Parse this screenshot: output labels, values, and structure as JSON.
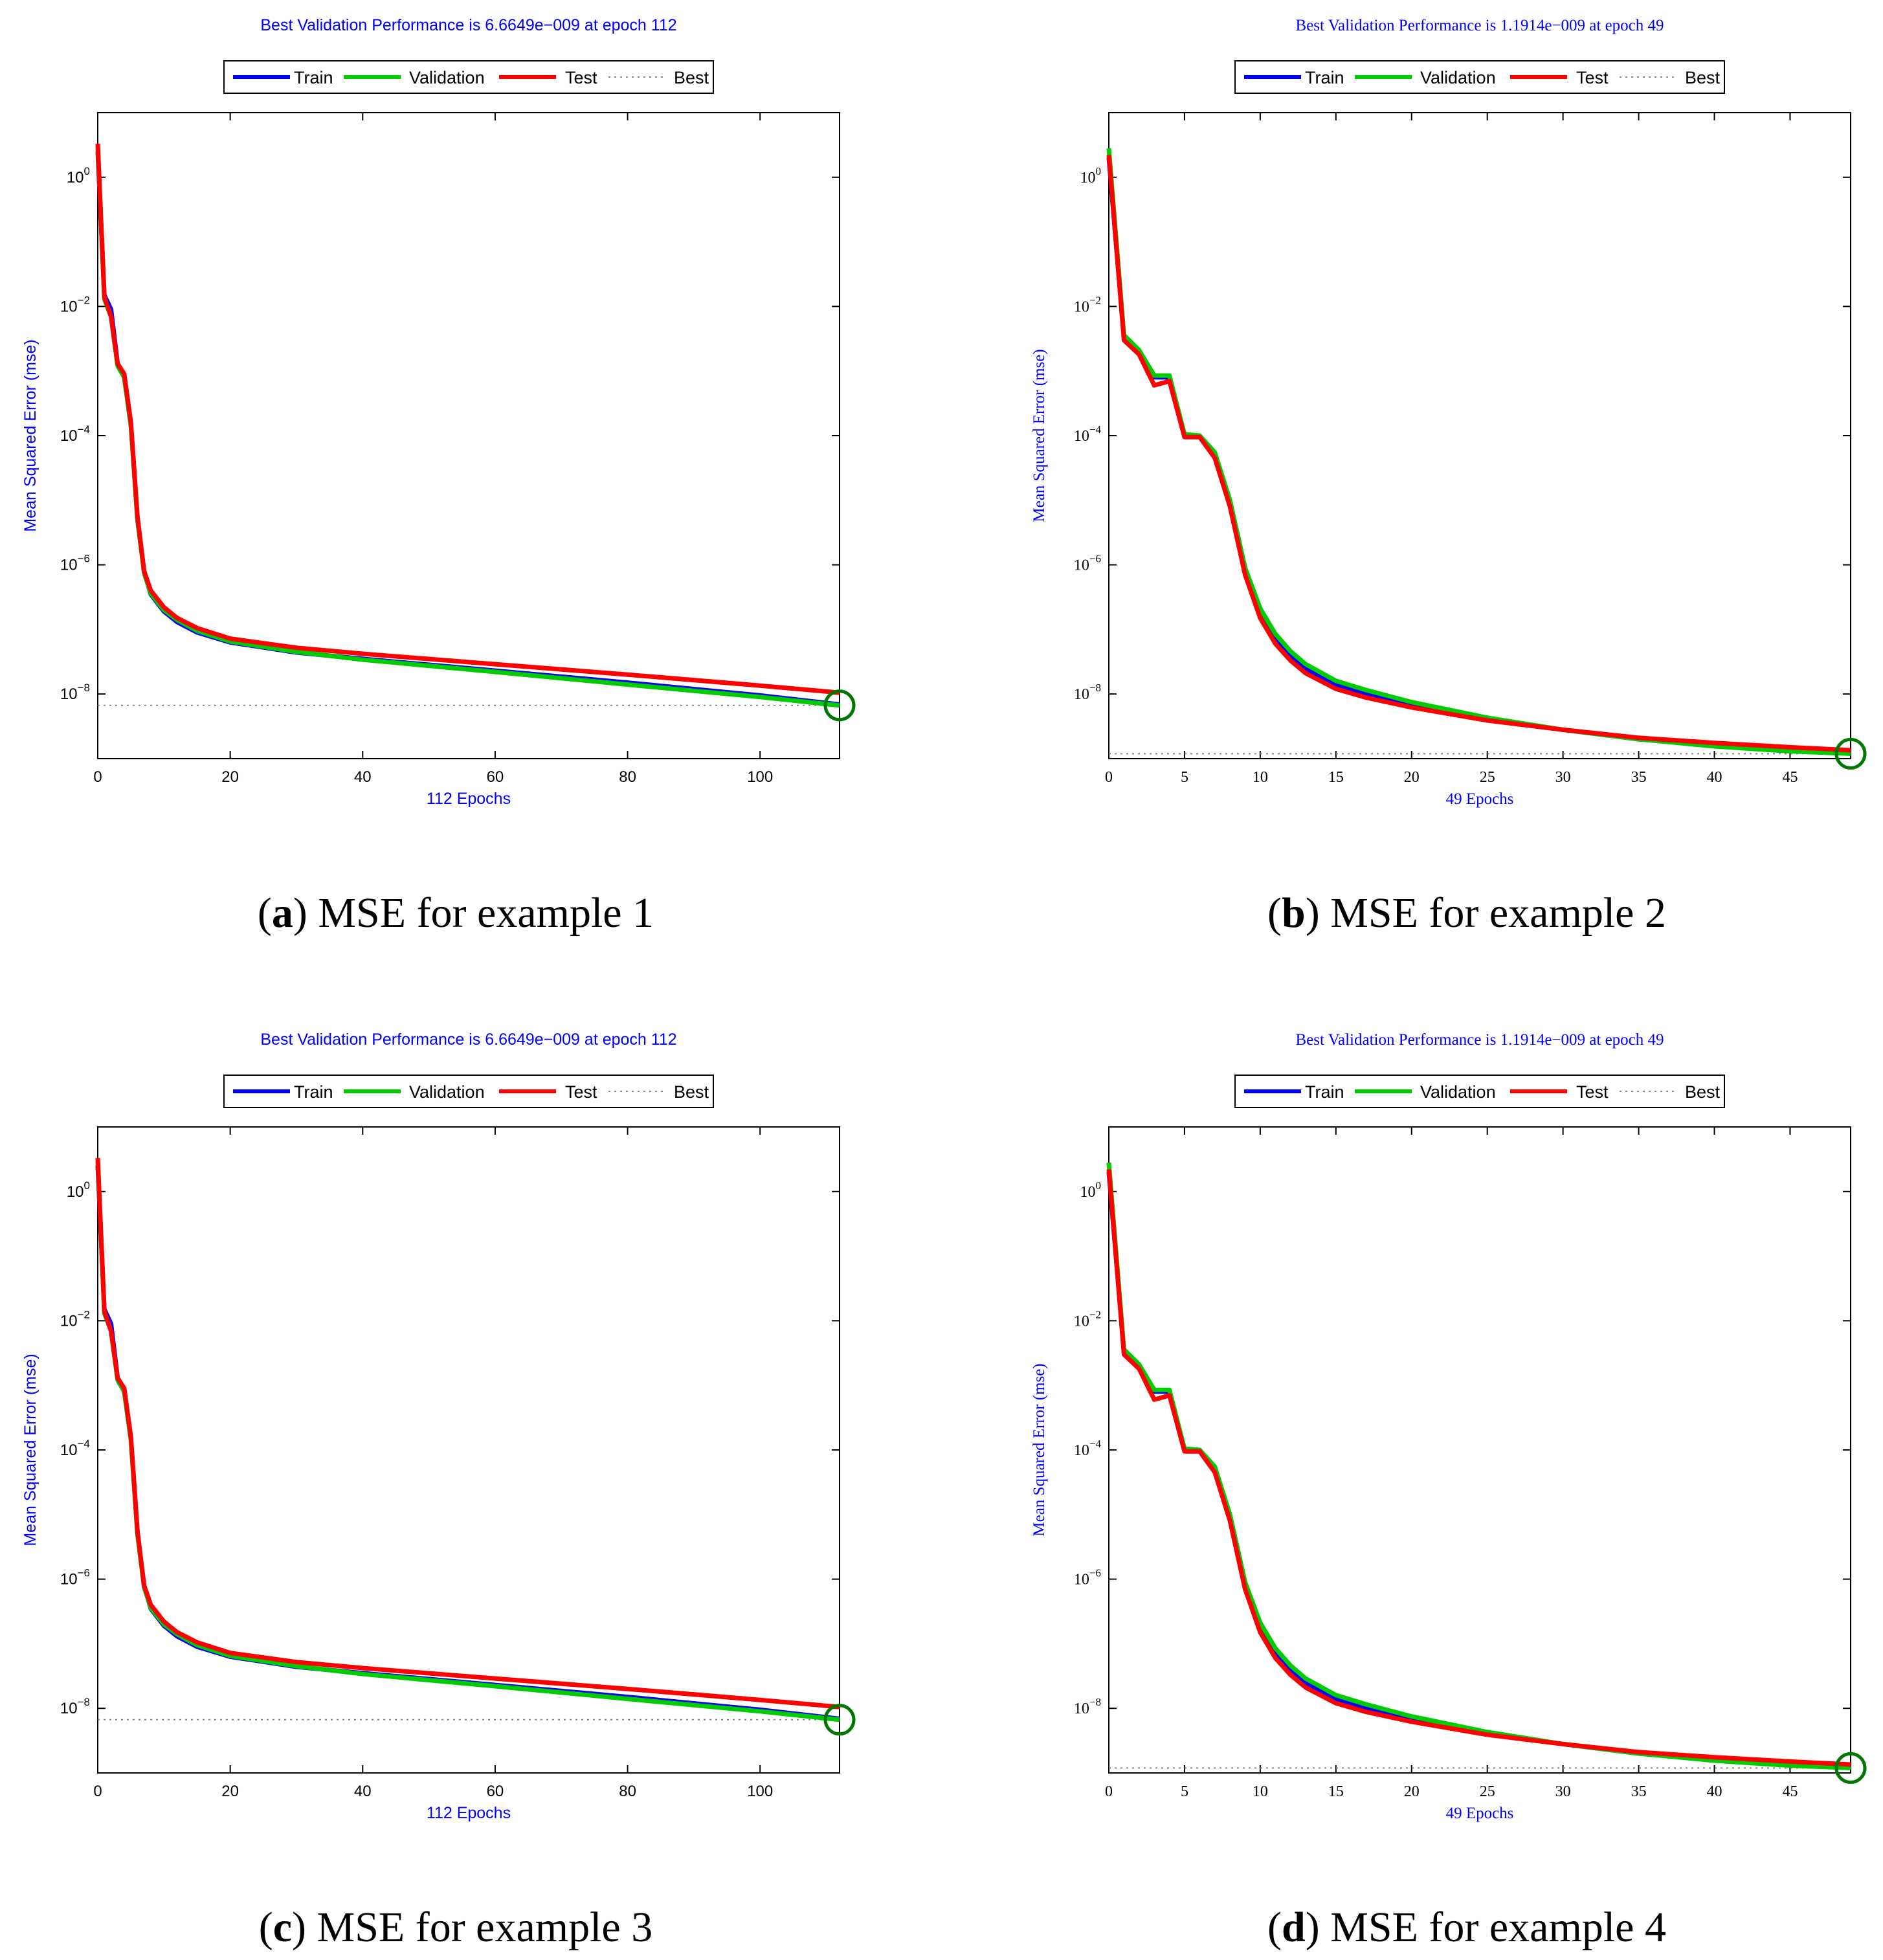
{
  "colors": {
    "train": "#0000ff",
    "validation": "#00cc00",
    "test": "#ff0000",
    "best": "#888888",
    "marker": "#007700",
    "title": "#0000ff"
  },
  "chart_data": [
    {
      "type": "line",
      "caption_letter": "a",
      "caption_text": " MSE for example 1",
      "title": "Best Validation Performance is 6.6649e−009 at epoch 112",
      "xlabel": "112 Epochs",
      "ylabel": "Mean Squared Error  (mse)",
      "xlim": [
        0,
        112
      ],
      "ylim": [
        1e-09,
        10
      ],
      "xticks": [
        "0",
        "20",
        "40",
        "60",
        "80",
        "100"
      ],
      "xtick_values": [
        0,
        20,
        40,
        60,
        80,
        100
      ],
      "yticks": [
        {
          "value": 1,
          "base": "10",
          "exp": "0"
        },
        {
          "value": 0.01,
          "base": "10",
          "exp": "−2"
        },
        {
          "value": 0.0001,
          "base": "10",
          "exp": "−4"
        },
        {
          "value": 1e-06,
          "base": "10",
          "exp": "−6"
        },
        {
          "value": 1e-08,
          "base": "10",
          "exp": "−8"
        }
      ],
      "legend": [
        "Train",
        "Validation",
        "Test",
        "Best"
      ],
      "best": {
        "epoch": 112,
        "value": 6.6649e-09
      },
      "series": [
        {
          "name": "Train",
          "x": [
            0,
            1,
            2,
            3,
            4,
            5,
            6,
            7,
            8,
            10,
            12,
            15,
            20,
            30,
            40,
            60,
            80,
            100,
            112
          ],
          "values": [
            2.5,
            0.015,
            0.009,
            0.0013,
            0.0008,
            0.00015,
            5e-06,
            8e-07,
            3.5e-07,
            1.9e-07,
            1.3e-07,
            9e-08,
            6.3e-08,
            4.4e-08,
            3.5e-08,
            2.3e-08,
            1.5e-08,
            9.5e-09,
            6.9e-09
          ]
        },
        {
          "name": "Validation",
          "x": [
            0,
            1,
            2,
            3,
            4,
            5,
            6,
            7,
            8,
            10,
            12,
            15,
            20,
            30,
            40,
            60,
            80,
            100,
            112
          ],
          "values": [
            3.0,
            0.013,
            0.007,
            0.0012,
            0.0008,
            0.00014,
            5e-06,
            7.5e-07,
            3.6e-07,
            2e-07,
            1.4e-07,
            9.5e-08,
            6.5e-08,
            4.5e-08,
            3.4e-08,
            2.2e-08,
            1.4e-08,
            9e-09,
            6.6649e-09
          ]
        },
        {
          "name": "Test",
          "x": [
            0,
            1,
            2,
            3,
            4,
            5,
            6,
            7,
            8,
            10,
            12,
            15,
            20,
            30,
            40,
            60,
            80,
            100,
            112
          ],
          "values": [
            3.3,
            0.014,
            0.007,
            0.0013,
            0.0009,
            0.00016,
            5.5e-06,
            8e-07,
            4e-07,
            2.2e-07,
            1.5e-07,
            1.05e-07,
            7.2e-08,
            5.2e-08,
            4.2e-08,
            2.9e-08,
            2e-08,
            1.35e-08,
            1.05e-08
          ]
        }
      ]
    },
    {
      "type": "line",
      "caption_letter": "b",
      "caption_text": " MSE for example 2",
      "title": "Best Validation Performance is 1.1914e−009 at epoch 49",
      "xlabel": "49 Epochs",
      "ylabel": "Mean Squared Error  (mse)",
      "xlim": [
        0,
        49
      ],
      "ylim": [
        1e-09,
        10
      ],
      "xticks": [
        "0",
        "5",
        "10",
        "15",
        "20",
        "25",
        "30",
        "35",
        "40",
        "45"
      ],
      "xtick_values": [
        0,
        5,
        10,
        15,
        20,
        25,
        30,
        35,
        40,
        45
      ],
      "yticks": [
        {
          "value": 1,
          "base": "10",
          "exp": "0"
        },
        {
          "value": 0.01,
          "base": "10",
          "exp": "−2"
        },
        {
          "value": 0.0001,
          "base": "10",
          "exp": "−4"
        },
        {
          "value": 1e-06,
          "base": "10",
          "exp": "−6"
        },
        {
          "value": 1e-08,
          "base": "10",
          "exp": "−8"
        }
      ],
      "legend": [
        "Train",
        "Validation",
        "Test",
        "Best"
      ],
      "best": {
        "epoch": 49,
        "value": 1.1914e-09
      },
      "series": [
        {
          "name": "Train",
          "x": [
            0,
            1,
            2,
            3,
            4,
            5,
            6,
            7,
            8,
            9,
            10,
            11,
            12,
            13,
            15,
            17,
            20,
            25,
            30,
            35,
            40,
            45,
            49
          ],
          "values": [
            2.0,
            0.0033,
            0.002,
            0.0008,
            0.0008,
            0.0001,
            0.0001,
            5e-05,
            9e-06,
            8e-07,
            1.8e-07,
            7.5e-08,
            4e-08,
            2.5e-08,
            1.4e-08,
            1e-08,
            6.8e-09,
            4.1e-09,
            2.8e-09,
            2e-09,
            1.6e-09,
            1.35e-09,
            1.2e-09
          ]
        },
        {
          "name": "Validation",
          "x": [
            0,
            1,
            2,
            3,
            4,
            5,
            6,
            7,
            8,
            9,
            10,
            11,
            12,
            13,
            15,
            17,
            20,
            25,
            30,
            35,
            40,
            45,
            49
          ],
          "values": [
            2.8,
            0.0036,
            0.0021,
            0.00085,
            0.00085,
            0.000105,
            0.0001,
            5.5e-05,
            1e-05,
            9e-07,
            2.1e-07,
            8.5e-08,
            4.6e-08,
            2.9e-08,
            1.6e-08,
            1.15e-08,
            7.5e-09,
            4.3e-09,
            2.8e-09,
            2e-09,
            1.55e-09,
            1.3e-09,
            1.1914e-09
          ]
        },
        {
          "name": "Test",
          "x": [
            0,
            1,
            2,
            3,
            4,
            5,
            6,
            7,
            8,
            9,
            10,
            11,
            12,
            13,
            15,
            17,
            20,
            25,
            30,
            35,
            40,
            45,
            49
          ],
          "values": [
            2.2,
            0.003,
            0.0018,
            0.0006,
            0.0007,
            9.5e-05,
            9.5e-05,
            4.5e-05,
            8e-06,
            7e-07,
            1.5e-07,
            6e-08,
            3.3e-08,
            2.1e-08,
            1.2e-08,
            8.8e-09,
            6.2e-09,
            3.9e-09,
            2.8e-09,
            2.1e-09,
            1.75e-09,
            1.5e-09,
            1.35e-09
          ]
        }
      ]
    },
    {
      "type": "line",
      "caption_letter": "c",
      "caption_text": " MSE for example 3",
      "title": "Best Validation Performance is 6.6649e−009 at epoch 112",
      "xlabel": "112 Epochs",
      "ylabel": "Mean Squared Error  (mse)",
      "xlim": [
        0,
        112
      ],
      "ylim": [
        1e-09,
        10
      ],
      "xticks": [
        "0",
        "20",
        "40",
        "60",
        "80",
        "100"
      ],
      "xtick_values": [
        0,
        20,
        40,
        60,
        80,
        100
      ],
      "yticks": [
        {
          "value": 1,
          "base": "10",
          "exp": "0"
        },
        {
          "value": 0.01,
          "base": "10",
          "exp": "−2"
        },
        {
          "value": 0.0001,
          "base": "10",
          "exp": "−4"
        },
        {
          "value": 1e-06,
          "base": "10",
          "exp": "−6"
        },
        {
          "value": 1e-08,
          "base": "10",
          "exp": "−8"
        }
      ],
      "legend": [
        "Train",
        "Validation",
        "Test",
        "Best"
      ],
      "best": {
        "epoch": 112,
        "value": 6.6649e-09
      },
      "series": [
        {
          "name": "Train",
          "x": [
            0,
            1,
            2,
            3,
            4,
            5,
            6,
            7,
            8,
            10,
            12,
            15,
            20,
            30,
            40,
            60,
            80,
            100,
            112
          ],
          "values": [
            2.5,
            0.015,
            0.009,
            0.0013,
            0.0008,
            0.00015,
            5e-06,
            8e-07,
            3.5e-07,
            1.9e-07,
            1.3e-07,
            9e-08,
            6.3e-08,
            4.4e-08,
            3.5e-08,
            2.3e-08,
            1.5e-08,
            9.5e-09,
            6.9e-09
          ]
        },
        {
          "name": "Validation",
          "x": [
            0,
            1,
            2,
            3,
            4,
            5,
            6,
            7,
            8,
            10,
            12,
            15,
            20,
            30,
            40,
            60,
            80,
            100,
            112
          ],
          "values": [
            3.0,
            0.013,
            0.007,
            0.0012,
            0.0008,
            0.00014,
            5e-06,
            7.5e-07,
            3.6e-07,
            2e-07,
            1.4e-07,
            9.5e-08,
            6.5e-08,
            4.5e-08,
            3.4e-08,
            2.2e-08,
            1.4e-08,
            9e-09,
            6.6649e-09
          ]
        },
        {
          "name": "Test",
          "x": [
            0,
            1,
            2,
            3,
            4,
            5,
            6,
            7,
            8,
            10,
            12,
            15,
            20,
            30,
            40,
            60,
            80,
            100,
            112
          ],
          "values": [
            3.3,
            0.014,
            0.007,
            0.0013,
            0.0009,
            0.00016,
            5.5e-06,
            8e-07,
            4e-07,
            2.2e-07,
            1.5e-07,
            1.05e-07,
            7.2e-08,
            5.2e-08,
            4.2e-08,
            2.9e-08,
            2e-08,
            1.35e-08,
            1.05e-08
          ]
        }
      ]
    },
    {
      "type": "line",
      "caption_letter": "d",
      "caption_text": " MSE for example 4",
      "title": "Best Validation Performance is 1.1914e−009 at epoch 49",
      "xlabel": "49 Epochs",
      "ylabel": "Mean Squared Error  (mse)",
      "xlim": [
        0,
        49
      ],
      "ylim": [
        1e-09,
        10
      ],
      "xticks": [
        "0",
        "5",
        "10",
        "15",
        "20",
        "25",
        "30",
        "35",
        "40",
        "45"
      ],
      "xtick_values": [
        0,
        5,
        10,
        15,
        20,
        25,
        30,
        35,
        40,
        45
      ],
      "yticks": [
        {
          "value": 1,
          "base": "10",
          "exp": "0"
        },
        {
          "value": 0.01,
          "base": "10",
          "exp": "−2"
        },
        {
          "value": 0.0001,
          "base": "10",
          "exp": "−4"
        },
        {
          "value": 1e-06,
          "base": "10",
          "exp": "−6"
        },
        {
          "value": 1e-08,
          "base": "10",
          "exp": "−8"
        }
      ],
      "legend": [
        "Train",
        "Validation",
        "Test",
        "Best"
      ],
      "best": {
        "epoch": 49,
        "value": 1.1914e-09
      },
      "series": [
        {
          "name": "Train",
          "x": [
            0,
            1,
            2,
            3,
            4,
            5,
            6,
            7,
            8,
            9,
            10,
            11,
            12,
            13,
            15,
            17,
            20,
            25,
            30,
            35,
            40,
            45,
            49
          ],
          "values": [
            2.0,
            0.0033,
            0.002,
            0.0008,
            0.0008,
            0.0001,
            0.0001,
            5e-05,
            9e-06,
            8e-07,
            1.8e-07,
            7.5e-08,
            4e-08,
            2.5e-08,
            1.4e-08,
            1e-08,
            6.8e-09,
            4.1e-09,
            2.8e-09,
            2e-09,
            1.6e-09,
            1.35e-09,
            1.2e-09
          ]
        },
        {
          "name": "Validation",
          "x": [
            0,
            1,
            2,
            3,
            4,
            5,
            6,
            7,
            8,
            9,
            10,
            11,
            12,
            13,
            15,
            17,
            20,
            25,
            30,
            35,
            40,
            45,
            49
          ],
          "values": [
            2.8,
            0.0036,
            0.0021,
            0.00085,
            0.00085,
            0.000105,
            0.0001,
            5.5e-05,
            1e-05,
            9e-07,
            2.1e-07,
            8.5e-08,
            4.6e-08,
            2.9e-08,
            1.6e-08,
            1.15e-08,
            7.5e-09,
            4.3e-09,
            2.8e-09,
            2e-09,
            1.55e-09,
            1.3e-09,
            1.1914e-09
          ]
        },
        {
          "name": "Test",
          "x": [
            0,
            1,
            2,
            3,
            4,
            5,
            6,
            7,
            8,
            9,
            10,
            11,
            12,
            13,
            15,
            17,
            20,
            25,
            30,
            35,
            40,
            45,
            49
          ],
          "values": [
            2.2,
            0.003,
            0.0018,
            0.0006,
            0.0007,
            9.5e-05,
            9.5e-05,
            4.5e-05,
            8e-06,
            7e-07,
            1.5e-07,
            6e-08,
            3.3e-08,
            2.1e-08,
            1.2e-08,
            8.8e-09,
            6.2e-09,
            3.9e-09,
            2.8e-09,
            2.1e-09,
            1.75e-09,
            1.5e-09,
            1.35e-09
          ]
        }
      ]
    }
  ]
}
